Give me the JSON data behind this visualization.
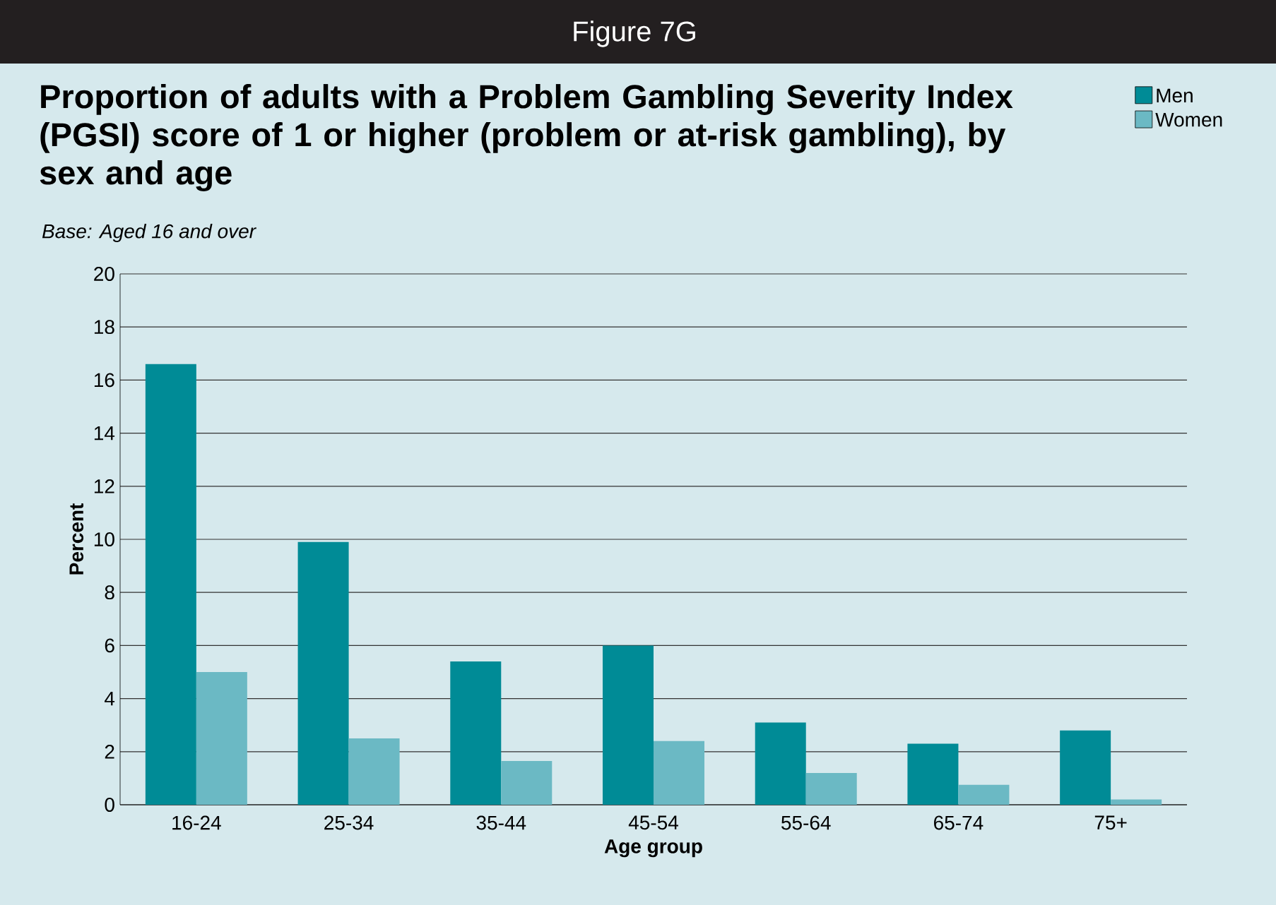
{
  "chart_data": {
    "type": "bar",
    "title": "Proportion of adults with a Problem Gambling Severity Index (PGSI) score of 1 or higher (problem or at-risk gambling), by sex and age",
    "subtitle": "Base: Aged 16 and over",
    "annotations": [
      "Figure 7G"
    ],
    "xlabel": "Age group",
    "ylabel": "Percent",
    "categories": [
      "16-24",
      "25-34",
      "35-44",
      "45-54",
      "55-64",
      "65-74",
      "75+"
    ],
    "series": [
      {
        "name": "Men",
        "color": "#008b96",
        "values": [
          16.6,
          9.9,
          5.4,
          6.0,
          3.1,
          2.3,
          2.8
        ]
      },
      {
        "name": "Women",
        "color": "#6bb9c4",
        "values": [
          5.0,
          2.5,
          1.65,
          2.4,
          1.2,
          0.75,
          0.2
        ]
      }
    ],
    "ylim": [
      0,
      20
    ],
    "yticks": [
      0,
      2,
      4,
      6,
      8,
      10,
      12,
      14,
      16,
      18,
      20
    ],
    "grid": "y",
    "legend": "top right"
  }
}
